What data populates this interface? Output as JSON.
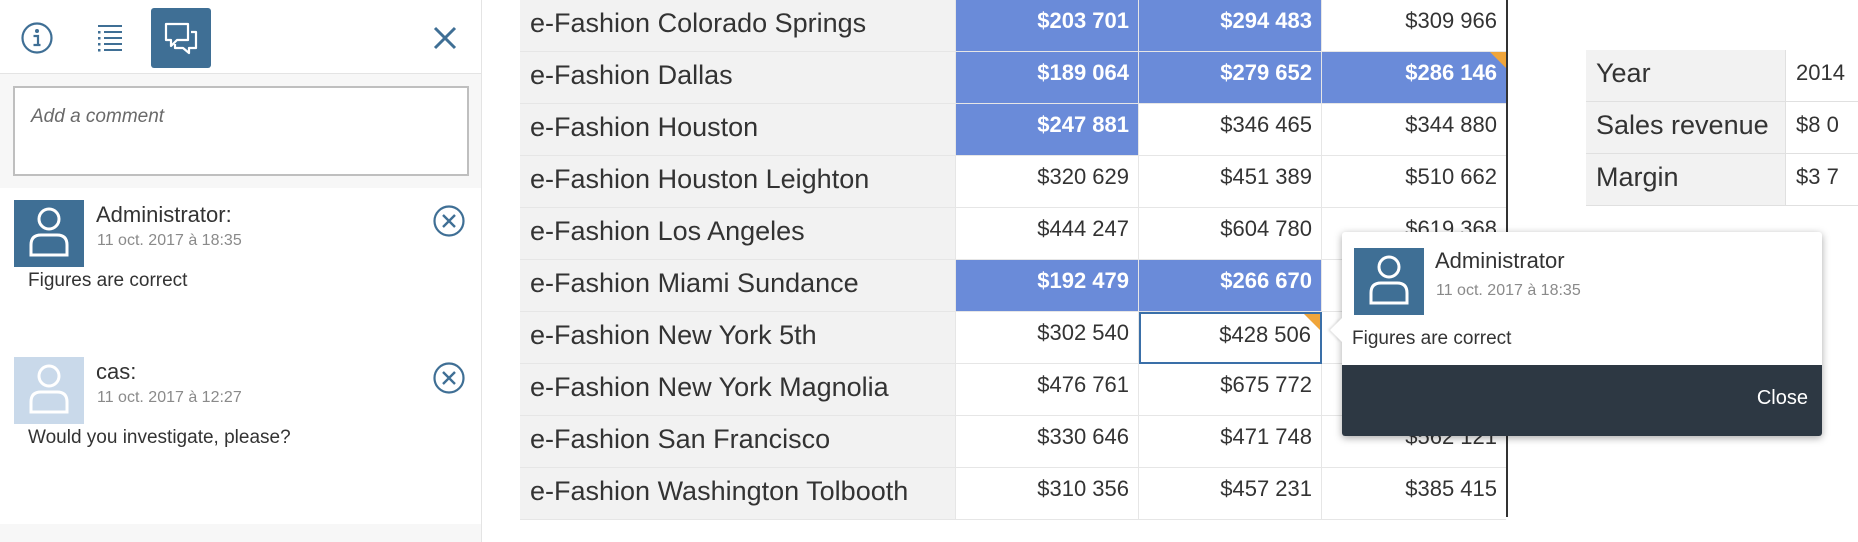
{
  "comments_panel": {
    "toolbar": {
      "info_icon": "info-icon",
      "list_icon": "list-icon",
      "comments_icon": "comments-icon",
      "close_icon": "close-icon",
      "active_tab": "comments"
    },
    "new_comment_placeholder": "Add a comment",
    "comments": [
      {
        "author": "Administrator:",
        "date": "11 oct. 2017 à 18:35",
        "text": "Figures are correct",
        "avatar": "user-avatar-dark"
      },
      {
        "author": "cas:",
        "date": "11 oct. 2017 à 12:27",
        "text": "Would you investigate, please?",
        "avatar": "user-avatar-light"
      }
    ]
  },
  "table": {
    "rows": [
      {
        "name": "e-Fashion Colorado Springs",
        "values": [
          "$203 701",
          "$294 483",
          "$309 966"
        ],
        "highlighted": [
          true,
          true,
          false
        ]
      },
      {
        "name": "e-Fashion Dallas",
        "values": [
          "$189 064",
          "$279 652",
          "$286 146"
        ],
        "highlighted": [
          true,
          true,
          true
        ],
        "comment_marker_col": 2
      },
      {
        "name": "e-Fashion Houston",
        "values": [
          "$247 881",
          "$346 465",
          "$344 880"
        ],
        "highlighted": [
          true,
          false,
          false
        ]
      },
      {
        "name": "e-Fashion Houston Leighton",
        "values": [
          "$320 629",
          "$451 389",
          "$510 662"
        ],
        "highlighted": [
          false,
          false,
          false
        ]
      },
      {
        "name": "e-Fashion Los Angeles",
        "values": [
          "$444 247",
          "$604 780",
          "$619 368"
        ],
        "highlighted": [
          false,
          false,
          false
        ]
      },
      {
        "name": "e-Fashion Miami Sundance",
        "values": [
          "$192 479",
          "$266 670",
          ""
        ],
        "highlighted": [
          true,
          true,
          false
        ]
      },
      {
        "name": "e-Fashion New York 5th",
        "values": [
          "$302 540",
          "$428 506",
          ""
        ],
        "highlighted": [
          false,
          false,
          false
        ],
        "selected_col": 1,
        "comment_marker_col": 1
      },
      {
        "name": "e-Fashion New York Magnolia",
        "values": [
          "$476 761",
          "$675 772",
          ""
        ],
        "highlighted": [
          false,
          false,
          false
        ]
      },
      {
        "name": "e-Fashion San Francisco",
        "values": [
          "$330 646",
          "$471 748",
          "$562 121"
        ],
        "highlighted": [
          false,
          false,
          false
        ]
      },
      {
        "name": "e-Fashion Washington Tolbooth",
        "values": [
          "$310 356",
          "$457 231",
          "$385 415"
        ],
        "highlighted": [
          false,
          false,
          false
        ]
      }
    ],
    "highlight_color": "#6a8bd9",
    "comment_marker_color": "#f0a53a"
  },
  "summary": {
    "rows": [
      {
        "label": "Year",
        "value": "2014"
      },
      {
        "label": "Sales revenue",
        "value": "$8 0"
      },
      {
        "label": "Margin",
        "value": "$3 7"
      }
    ]
  },
  "popover": {
    "author": "Administrator",
    "date": "11 oct. 2017 à 18:35",
    "text": "Figures are correct",
    "close_label": "Close"
  }
}
